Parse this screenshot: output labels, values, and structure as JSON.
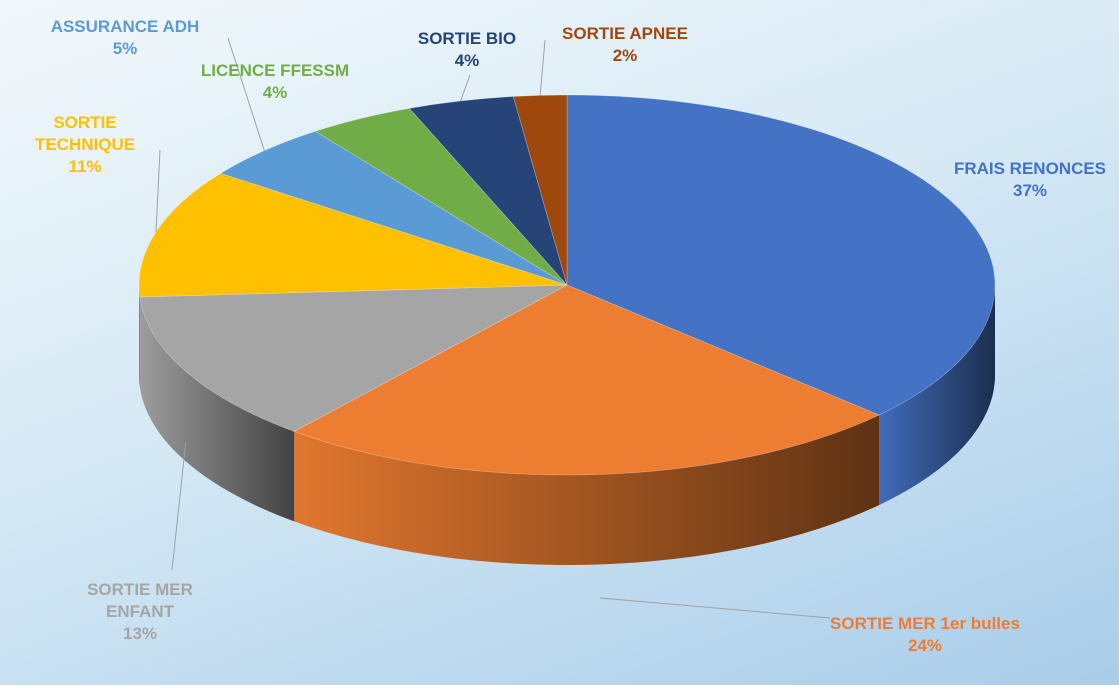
{
  "chart_data": {
    "type": "pie",
    "categories": [
      "FRAIS RENONCES",
      "SORTIE MER 1er bulles",
      "SORTIE MER ENFANT",
      "SORTIE TECHNIQUE",
      "ASSURANCE ADH",
      "LICENCE FFESSM",
      "SORTIE BIO",
      "SORTIE APNEE"
    ],
    "values": [
      37,
      24,
      13,
      11,
      5,
      4,
      4,
      2
    ],
    "value_labels": [
      "37%",
      "24%",
      "13%",
      "11%",
      "5%",
      "4%",
      "4%",
      "2%"
    ],
    "colors": [
      "#4472c4",
      "#ed7d31",
      "#a5a5a5",
      "#ffc000",
      "#5b9bd5",
      "#70ad47",
      "#264478",
      "#9e480e"
    ]
  }
}
